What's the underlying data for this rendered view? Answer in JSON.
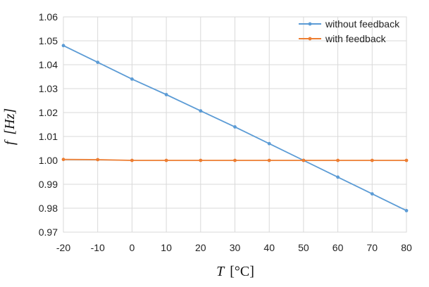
{
  "chart_data": {
    "type": "line",
    "title": "",
    "xlabel": {
      "var": "T",
      "unit": "[°C]"
    },
    "ylabel": {
      "var": "f",
      "unit": "[Hz]"
    },
    "x": [
      -20,
      -10,
      0,
      10,
      20,
      30,
      40,
      50,
      60,
      70,
      80
    ],
    "xlim": [
      -20,
      80
    ],
    "ylim": [
      0.97,
      1.06
    ],
    "xticks": [
      "-20",
      "-10",
      "0",
      "10",
      "20",
      "30",
      "40",
      "50",
      "60",
      "70",
      "80"
    ],
    "yticks": [
      "0.97",
      "0.98",
      "0.99",
      "1.00",
      "1.01",
      "1.02",
      "1.03",
      "1.04",
      "1.05",
      "1.06"
    ],
    "grid": true,
    "legend_position": "top-right",
    "series": [
      {
        "name": "without feedback",
        "color": "#5b9bd5",
        "values": [
          1.048,
          1.041,
          1.034,
          1.0275,
          1.0207,
          1.014,
          1.007,
          1.0,
          0.993,
          0.986,
          0.979
        ]
      },
      {
        "name": "with feedback",
        "color": "#ed7d31",
        "values": [
          1.0004,
          1.0003,
          1.0,
          1.0,
          1.0,
          1.0,
          1.0,
          1.0,
          1.0,
          1.0,
          1.0
        ]
      }
    ]
  }
}
